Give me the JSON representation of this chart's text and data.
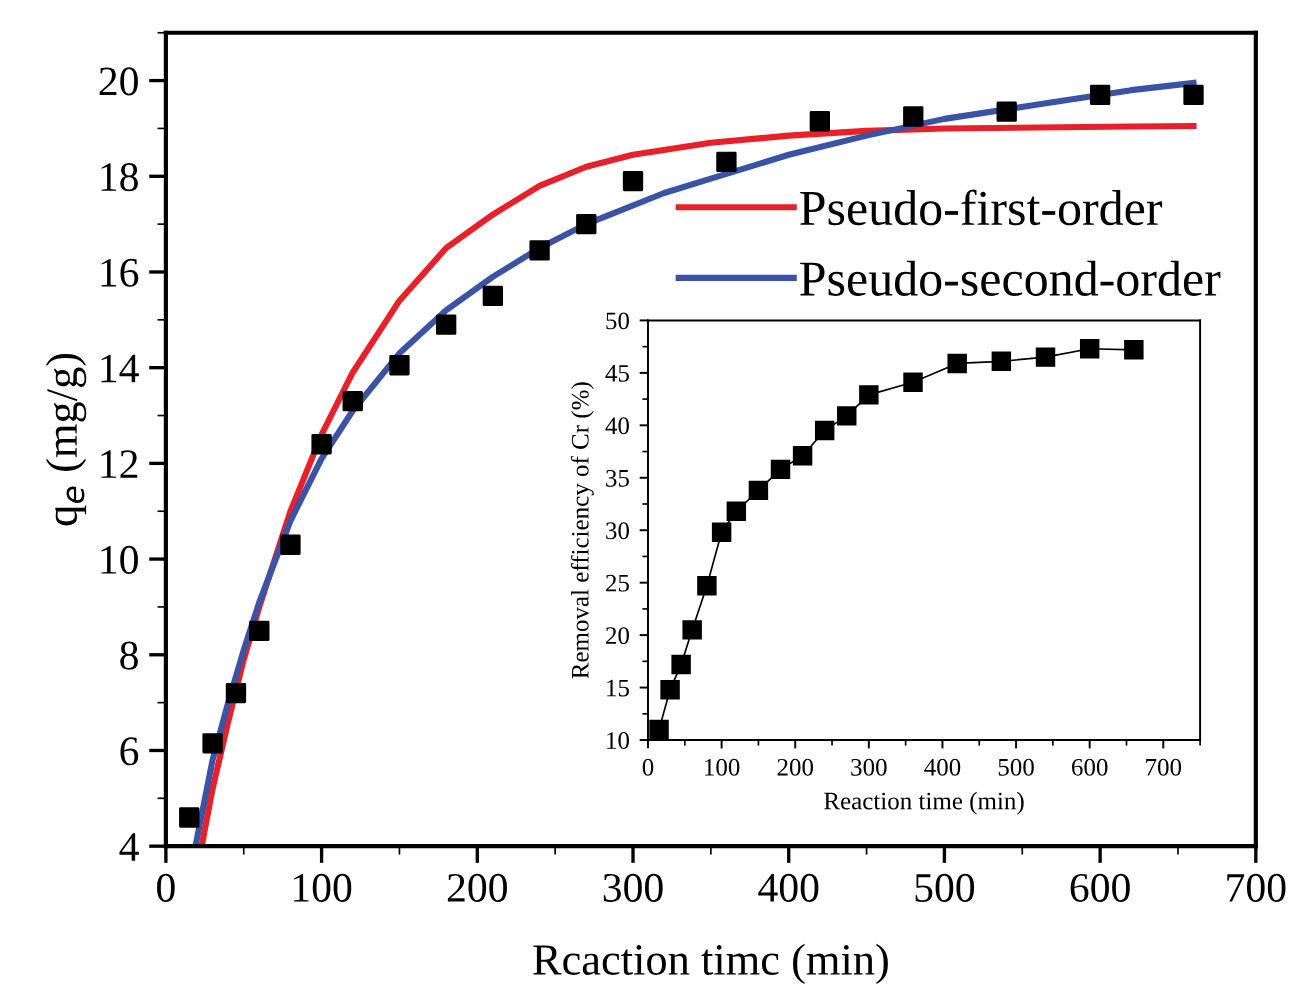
{
  "chart_data": [
    {
      "type": "scatter",
      "xlabel": "Rcaction timc (min)",
      "ylabel": "q$_{e}$ (mg/g)",
      "xlim": [
        0,
        700
      ],
      "xticks": [
        0,
        100,
        200,
        300,
        400,
        500,
        600,
        700
      ],
      "ylim": [
        4,
        21
      ],
      "yticks": [
        4,
        6,
        8,
        10,
        12,
        14,
        16,
        18,
        20
      ],
      "grid": false,
      "legend": "upper right",
      "series": [
        {
          "type": "scatter",
          "color": "#000000",
          "marker": "square",
          "x": [
            15,
            30,
            45,
            60,
            80,
            100,
            120,
            150,
            180,
            210,
            240,
            270,
            300,
            360,
            420,
            480,
            540,
            600,
            660
          ],
          "values": [
            4.6,
            6.15,
            7.2,
            8.5,
            10.3,
            12.4,
            13.3,
            14.05,
            14.9,
            15.5,
            16.45,
            17.0,
            17.9,
            18.3,
            19.15,
            19.25,
            19.35,
            19.7,
            19.7
          ]
        },
        {
          "type": "line",
          "name": "Pseudo-first-order",
          "color": "#e8202a",
          "marker": "none",
          "x": [
            23,
            30,
            40,
            50,
            60,
            80,
            100,
            120,
            150,
            180,
            210,
            240,
            270,
            300,
            350,
            400,
            450,
            500,
            560,
            620,
            660
          ],
          "values": [
            4.0,
            5.2,
            6.6,
            7.9,
            9.0,
            11.0,
            12.6,
            13.9,
            15.4,
            16.5,
            17.2,
            17.8,
            18.2,
            18.45,
            18.7,
            18.85,
            18.95,
            19.0,
            19.02,
            19.04,
            19.05
          ]
        },
        {
          "type": "line",
          "name": "Pseudo-second-order",
          "color": "#3a53a4",
          "marker": "none",
          "x": [
            19,
            30,
            40,
            50,
            60,
            80,
            100,
            120,
            150,
            180,
            210,
            240,
            270,
            320,
            350,
            400,
            450,
            500,
            560,
            620,
            660
          ],
          "values": [
            4.0,
            5.8,
            7.0,
            8.1,
            9.1,
            10.8,
            12.1,
            13.1,
            14.3,
            15.2,
            15.9,
            16.5,
            17.0,
            17.65,
            17.95,
            18.45,
            18.85,
            19.2,
            19.5,
            19.8,
            19.95
          ]
        }
      ]
    },
    {
      "type": "line",
      "xlabel": "Reaction time (min)",
      "ylabel": "Removal efficiency of Cr (%)",
      "xlim": [
        0,
        750
      ],
      "xticks": [
        0,
        100,
        200,
        300,
        400,
        500,
        600,
        700
      ],
      "ylim": [
        10,
        50
      ],
      "yticks": [
        10,
        15,
        20,
        25,
        30,
        35,
        40,
        45,
        50
      ],
      "grid": false,
      "legend": false,
      "marker": "square",
      "line_style": "solid",
      "series": [
        {
          "color": "#000000",
          "x": [
            15,
            30,
            45,
            60,
            80,
            100,
            120,
            150,
            180,
            210,
            240,
            270,
            300,
            360,
            420,
            480,
            540,
            600,
            660
          ],
          "values": [
            11.0,
            14.8,
            17.2,
            20.5,
            24.7,
            29.8,
            31.8,
            33.8,
            35.8,
            37.1,
            39.5,
            40.9,
            42.9,
            44.1,
            45.9,
            46.1,
            46.5,
            47.3,
            47.2
          ]
        }
      ]
    }
  ]
}
